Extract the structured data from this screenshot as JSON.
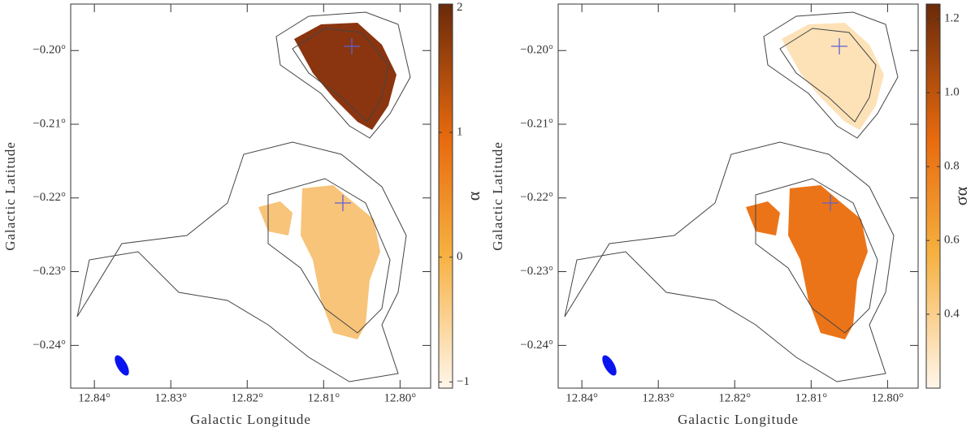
{
  "chart_data": [
    {
      "type": "map",
      "x_label": "Galactic Longitude",
      "y_label": "Galactic Latitude",
      "xlim": [
        12.8431,
        12.796
      ],
      "ylim": [
        -0.2458,
        -0.1937
      ],
      "xticks": [
        {
          "value": 12.84,
          "label": "12.84°"
        },
        {
          "value": 12.83,
          "label": "12.83°"
        },
        {
          "value": 12.82,
          "label": "12.82°"
        },
        {
          "value": 12.81,
          "label": "12.81°"
        },
        {
          "value": 12.8,
          "label": "12.80°"
        }
      ],
      "yticks": [
        {
          "value": -0.2,
          "label": "−0.20°"
        },
        {
          "value": -0.21,
          "label": "−0.21°"
        },
        {
          "value": -0.22,
          "label": "−0.22°"
        },
        {
          "value": -0.23,
          "label": "−0.23°"
        },
        {
          "value": -0.24,
          "label": "−0.24°"
        }
      ],
      "colorbar_label": "α",
      "clim": [
        -1.05,
        2.03
      ],
      "cticks": [
        {
          "value": -1,
          "label": "−1"
        },
        0,
        1,
        2
      ]
    },
    {
      "type": "map",
      "x_label": "Galactic Longitude",
      "y_label": "Galactic Latitude",
      "xlim": [
        12.8431,
        12.796
      ],
      "ylim": [
        -0.2458,
        -0.1937
      ],
      "xticks": [
        {
          "value": 12.84,
          "label": "12.84°"
        },
        {
          "value": 12.83,
          "label": "12.83°"
        },
        {
          "value": 12.82,
          "label": "12.82°"
        },
        {
          "value": 12.81,
          "label": "12.81°"
        },
        {
          "value": 12.8,
          "label": "12.80°"
        }
      ],
      "yticks": [
        {
          "value": -0.2,
          "label": "−0.20°"
        },
        {
          "value": -0.21,
          "label": "−0.21°"
        },
        {
          "value": -0.22,
          "label": "−0.22°"
        },
        {
          "value": -0.23,
          "label": "−0.23°"
        },
        {
          "value": -0.24,
          "label": "−0.24°"
        }
      ],
      "colorbar_label": "σα",
      "clim": [
        0.2,
        1.24
      ],
      "cticks": [
        0.4,
        0.6,
        0.8,
        {
          "value": 1,
          "label": "1.0"
        },
        1.2
      ]
    }
  ]
}
